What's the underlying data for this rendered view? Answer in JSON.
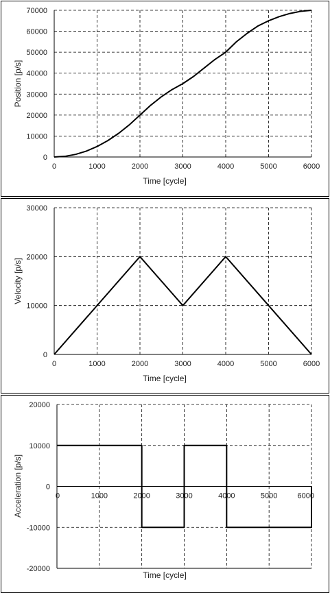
{
  "chart_data": [
    {
      "type": "line",
      "xlabel": "Time [cycle]",
      "ylabel": "Position [p/s]",
      "xlim": [
        0,
        6000
      ],
      "ylim": [
        0,
        70000
      ],
      "xticks": [
        0,
        1000,
        2000,
        3000,
        4000,
        5000,
        6000
      ],
      "yticks": [
        0,
        10000,
        20000,
        30000,
        40000,
        50000,
        60000,
        70000
      ],
      "grid": true,
      "series": [
        {
          "x": [
            0,
            250,
            500,
            750,
            1000,
            1250,
            1500,
            1750,
            2000,
            2250,
            2500,
            2750,
            3000,
            3250,
            3500,
            3750,
            4000,
            4250,
            4500,
            4750,
            5000,
            5250,
            5500,
            5750,
            6000
          ],
          "y": [
            0,
            312,
            1250,
            2812,
            5000,
            7812,
            11250,
            15312,
            20000,
            24688,
            28750,
            32188,
            35000,
            38438,
            42500,
            46562,
            50000,
            55000,
            59000,
            62500,
            65000,
            67000,
            68500,
            69500,
            70000
          ]
        }
      ]
    },
    {
      "type": "line",
      "xlabel": "Time [cycle]",
      "ylabel": "Velocity [p/s]",
      "xlim": [
        0,
        6000
      ],
      "ylim": [
        0,
        30000
      ],
      "xticks": [
        0,
        1000,
        2000,
        3000,
        4000,
        5000,
        6000
      ],
      "yticks": [
        0,
        10000,
        20000,
        30000
      ],
      "grid": true,
      "series": [
        {
          "x": [
            0,
            2000,
            3000,
            4000,
            6000
          ],
          "y": [
            0,
            20000,
            10000,
            20000,
            0
          ]
        }
      ]
    },
    {
      "type": "line",
      "xlabel": "Time [cycle]",
      "ylabel": "Acceleration [p/s]",
      "xlim": [
        0,
        6000
      ],
      "ylim": [
        -20000,
        20000
      ],
      "xticks": [
        0,
        1000,
        2000,
        3000,
        4000,
        5000,
        6000
      ],
      "yticks": [
        -20000,
        -10000,
        0,
        10000,
        20000
      ],
      "grid": true,
      "series": [
        {
          "x": [
            0,
            2000,
            2000,
            3000,
            3000,
            4000,
            4000,
            6000,
            6000
          ],
          "y": [
            10000,
            10000,
            -10000,
            -10000,
            10000,
            10000,
            -10000,
            -10000,
            0
          ]
        }
      ]
    }
  ]
}
